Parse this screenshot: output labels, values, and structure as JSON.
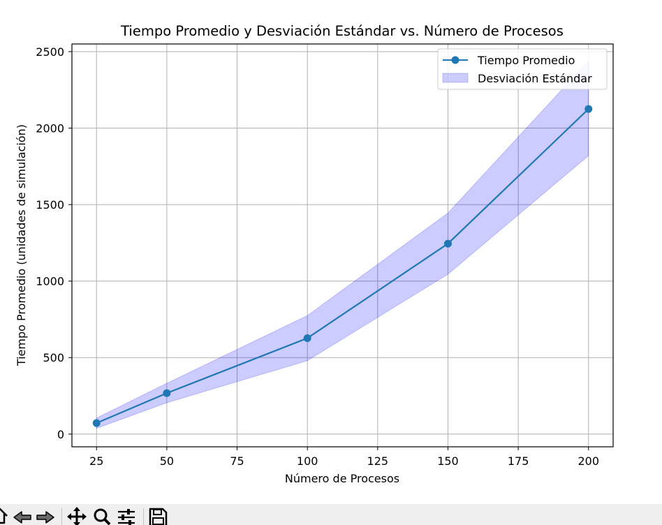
{
  "chart_data": {
    "type": "line",
    "title": "Tiempo Promedio y Desviación Estándar vs. Número de Procesos",
    "xlabel": "Número de Procesos",
    "ylabel": "Tiempo Promedio (unidades de simulación)",
    "x": [
      25,
      50,
      100,
      150,
      200
    ],
    "series": [
      {
        "name": "Tiempo Promedio",
        "values": [
          72,
          268,
          627,
          1245,
          2125
        ],
        "color": "#1f77b4",
        "marker": "circle"
      }
    ],
    "band": {
      "name": "Desviación Estándar",
      "lower": [
        38,
        205,
        480,
        1045,
        1820
      ],
      "upper": [
        105,
        332,
        775,
        1445,
        2440
      ],
      "color": "#0000ff",
      "opacity": 0.2
    },
    "xticks": [
      25,
      50,
      75,
      100,
      125,
      150,
      175,
      200
    ],
    "yticks": [
      0,
      500,
      1000,
      1500,
      2000,
      2500
    ],
    "xlim": [
      16.25,
      208.75
    ],
    "ylim": [
      -83,
      2550
    ],
    "grid": true,
    "legend_position": "top-right"
  },
  "toolbar": {
    "buttons": [
      "home-icon",
      "back-icon",
      "forward-icon",
      "pan-icon",
      "zoom-icon",
      "configure-icon",
      "save-icon"
    ]
  }
}
